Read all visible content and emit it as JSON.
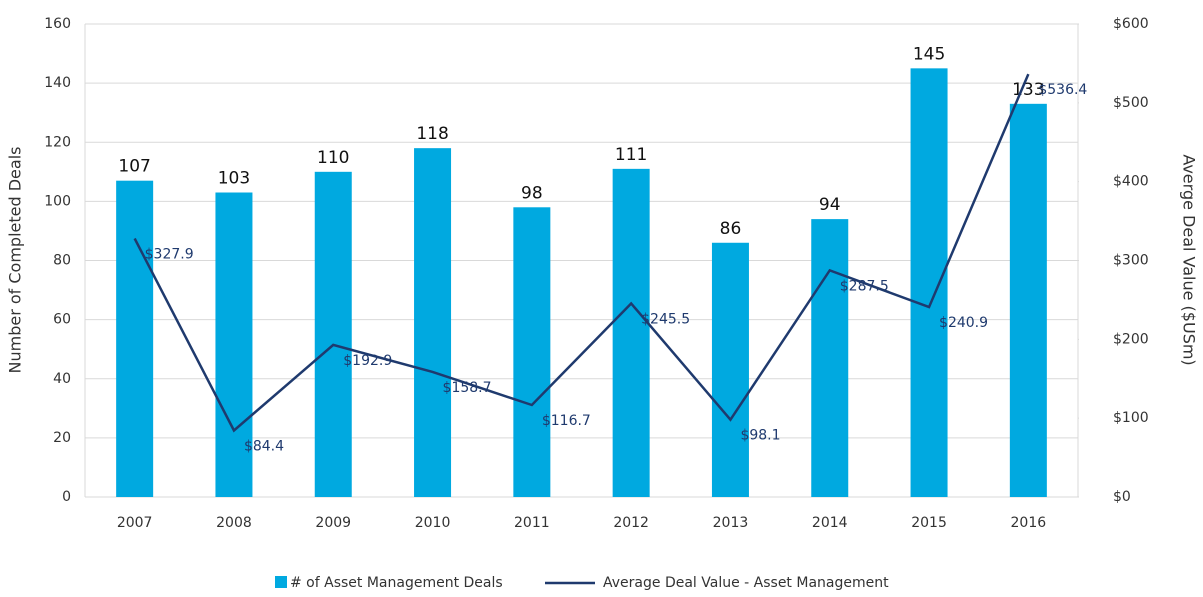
{
  "chart_data": {
    "type": "bar_line",
    "y_label": "Number of Completed Deals",
    "y2_label": "Averge Deal Value ($USm)",
    "categories": [
      "2007",
      "2008",
      "2009",
      "2010",
      "2011",
      "2012",
      "2013",
      "2014",
      "2015",
      "2016"
    ],
    "series": [
      {
        "name": "# of Asset Management Deals",
        "type": "bar",
        "color": "#00a9e0",
        "values": [
          107,
          103,
          110,
          118,
          98,
          111,
          86,
          94,
          145,
          133
        ]
      },
      {
        "name": "Average Deal Value - Asset Management",
        "type": "line",
        "axis": "y2",
        "color": "#1f3a6e",
        "values": [
          327.9,
          84.4,
          192.9,
          158.7,
          116.7,
          245.5,
          98.1,
          287.5,
          240.9,
          536.4
        ],
        "value_labels": [
          "$327.9",
          "$84.4",
          "$192.9",
          "$158.7",
          "$116.7",
          "$245.5",
          "$98.1",
          "$287.5",
          "$240.9",
          "$536.4"
        ]
      }
    ],
    "ylim": [
      0,
      160
    ],
    "yticks": [
      0,
      20,
      40,
      60,
      80,
      100,
      120,
      140,
      160
    ],
    "y2lim": [
      0,
      600
    ],
    "y2ticks": [
      {
        "value": 0,
        "label": "$0"
      },
      {
        "value": 100,
        "label": "$100"
      },
      {
        "value": 200,
        "label": "$200"
      },
      {
        "value": 300,
        "label": "$300"
      },
      {
        "value": 400,
        "label": "$400"
      },
      {
        "value": 500,
        "label": "$500"
      },
      {
        "value": 600,
        "label": "$600"
      }
    ],
    "grid": true,
    "legend": "bottom"
  }
}
